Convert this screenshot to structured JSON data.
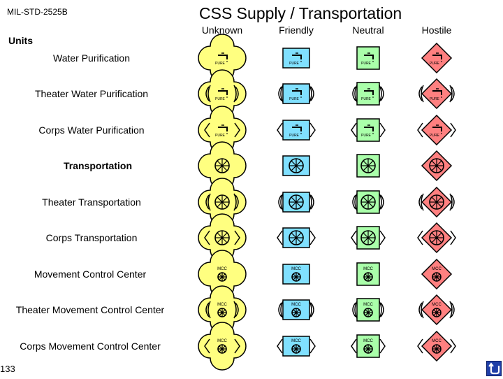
{
  "header": {
    "standard": "MIL-STD-2525B",
    "title": "CSS Supply / Transportation"
  },
  "columns": [
    "Unknown",
    "Friendly",
    "Neutral",
    "Hostile"
  ],
  "section_label": "Units",
  "rows": [
    {
      "label": "Water Purification",
      "bold": false,
      "icon": "water-tap",
      "echelon": "none"
    },
    {
      "label": "Theater Water Purification",
      "bold": false,
      "icon": "water-tap",
      "echelon": "theater"
    },
    {
      "label": "Corps Water Purification",
      "bold": false,
      "icon": "water-tap",
      "echelon": "corps"
    },
    {
      "label": "Transportation",
      "bold": true,
      "icon": "wheel",
      "echelon": "none"
    },
    {
      "label": "Theater Transportation",
      "bold": false,
      "icon": "wheel",
      "echelon": "theater"
    },
    {
      "label": "Corps Transportation",
      "bold": false,
      "icon": "wheel",
      "echelon": "corps"
    },
    {
      "label": "Movement Control Center",
      "bold": false,
      "icon": "mcc",
      "echelon": "none"
    },
    {
      "label": "Theater Movement Control Center",
      "bold": false,
      "icon": "mcc",
      "echelon": "theater"
    },
    {
      "label": "Corps Movement Control Center",
      "bold": false,
      "icon": "mcc",
      "echelon": "corps"
    }
  ],
  "icon_text": {
    "water": "PURE",
    "mcc": "MCC"
  },
  "colors": {
    "unknown": "#ffff80",
    "friendly": "#80e0ff",
    "neutral": "#aaffaa",
    "hostile": "#ff8080"
  },
  "footer": {
    "page_number": "133",
    "home_icon": "home-button-icon"
  }
}
